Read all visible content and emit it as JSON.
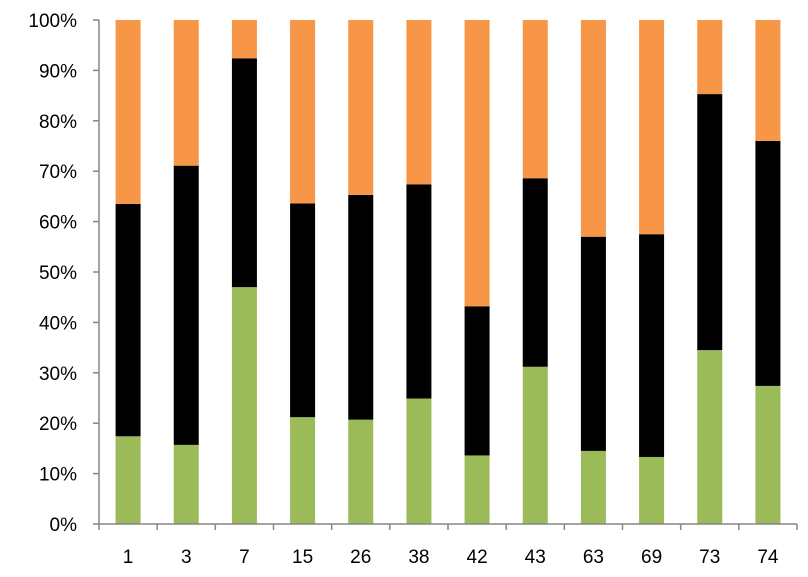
{
  "chart_data": {
    "type": "bar",
    "stacked": true,
    "percent_stacked": true,
    "title": "",
    "xlabel": "",
    "ylabel": "",
    "ylim": [
      0,
      100
    ],
    "grid": false,
    "legend": "none",
    "categories": [
      "1",
      "3",
      "7",
      "15",
      "26",
      "38",
      "42",
      "43",
      "63",
      "69",
      "73",
      "74"
    ],
    "y_ticks": [
      "0%",
      "10%",
      "20%",
      "30%",
      "40%",
      "50%",
      "60%",
      "70%",
      "80%",
      "90%",
      "100%"
    ],
    "series": [
      {
        "color": "#9BBB59",
        "values": [
          17.4,
          15.7,
          47.0,
          21.2,
          20.7,
          24.9,
          13.6,
          31.2,
          14.5,
          13.3,
          34.5,
          27.4
        ]
      },
      {
        "color": "#000000",
        "values": [
          46.1,
          55.4,
          45.4,
          42.4,
          44.6,
          42.5,
          29.6,
          37.4,
          42.5,
          44.2,
          50.8,
          48.6
        ]
      },
      {
        "color": "#F79646",
        "values": [
          36.5,
          28.9,
          7.6,
          36.4,
          34.7,
          32.6,
          56.8,
          31.4,
          43.0,
          42.5,
          14.7,
          24.0
        ]
      }
    ]
  }
}
